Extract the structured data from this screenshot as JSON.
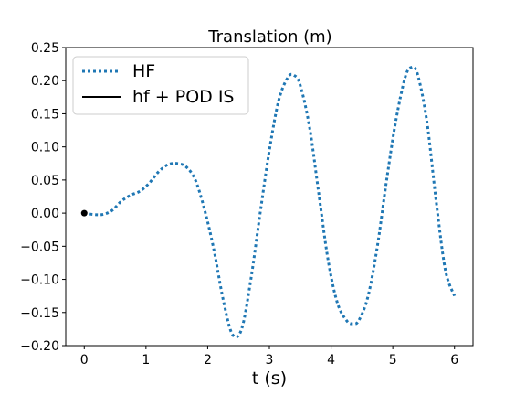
{
  "chart_data": {
    "type": "line",
    "title": "Translation (m)",
    "xlabel": "t (s)",
    "ylabel": "",
    "xlim": [
      -0.3,
      6.3
    ],
    "ylim": [
      -0.2,
      0.25
    ],
    "xticks": [
      0,
      1,
      2,
      3,
      4,
      5,
      6
    ],
    "yticks": [
      -0.2,
      -0.15,
      -0.1,
      -0.05,
      0.0,
      0.05,
      0.1,
      0.15,
      0.2,
      0.25
    ],
    "xtick_labels": [
      "0",
      "1",
      "2",
      "3",
      "4",
      "5",
      "6"
    ],
    "ytick_labels": [
      "−0.20",
      "−0.15",
      "−0.10",
      "−0.05",
      "0.00",
      "0.05",
      "0.10",
      "0.15",
      "0.20",
      "0.25"
    ],
    "grid": false,
    "legend_position": "top-left",
    "series": [
      {
        "name": "HF",
        "style": "dotted",
        "color": "#1f77b4",
        "x": [
          0.0,
          0.15,
          0.3,
          0.45,
          0.6,
          0.75,
          0.9,
          1.05,
          1.2,
          1.35,
          1.5,
          1.65,
          1.8,
          1.95,
          2.1,
          2.25,
          2.4,
          2.55,
          2.7,
          2.85,
          3.0,
          3.15,
          3.3,
          3.4,
          3.5,
          3.65,
          3.8,
          3.95,
          4.1,
          4.25,
          4.35,
          4.45,
          4.6,
          4.75,
          4.9,
          5.05,
          5.2,
          5.3,
          5.4,
          5.55,
          5.7,
          5.85,
          6.0
        ],
        "y": [
          0.0,
          -0.002,
          -0.002,
          0.004,
          0.018,
          0.027,
          0.033,
          0.045,
          0.062,
          0.073,
          0.075,
          0.07,
          0.05,
          0.005,
          -0.055,
          -0.13,
          -0.183,
          -0.175,
          -0.1,
          0.0,
          0.095,
          0.17,
          0.205,
          0.208,
          0.193,
          0.13,
          0.03,
          -0.07,
          -0.135,
          -0.162,
          -0.167,
          -0.162,
          -0.125,
          -0.05,
          0.05,
          0.14,
          0.205,
          0.22,
          0.21,
          0.14,
          0.02,
          -0.085,
          -0.125
        ]
      },
      {
        "name": "hf + POD IS",
        "style": "solid",
        "color": "#000000",
        "x": [
          0.0
        ],
        "y": [
          0.0
        ]
      }
    ]
  }
}
